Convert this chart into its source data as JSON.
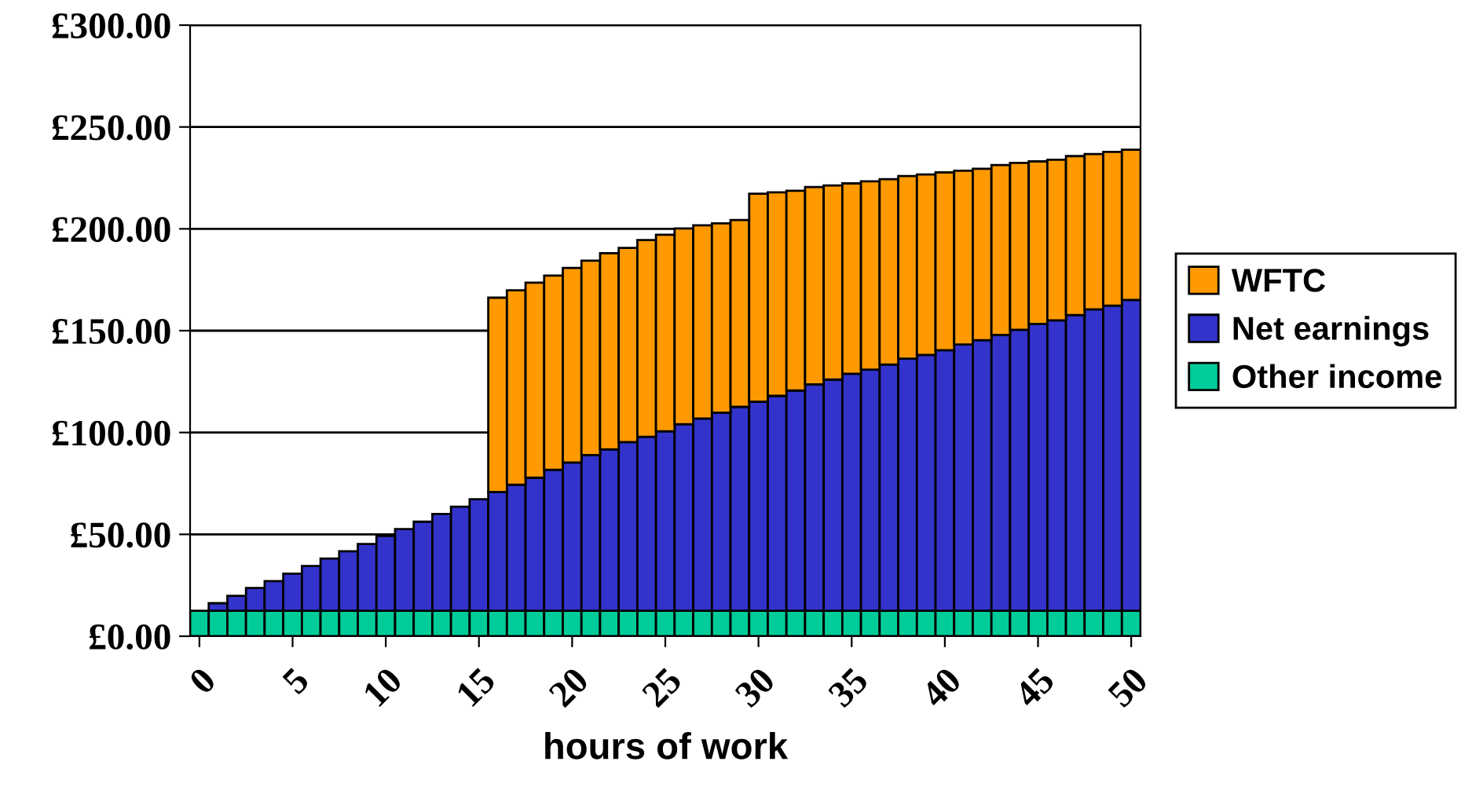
{
  "chart_data": {
    "type": "bar",
    "stacked": true,
    "xlabel": "hours of work",
    "categories": [
      "0",
      null,
      null,
      null,
      null,
      "5",
      null,
      null,
      null,
      null,
      "10",
      null,
      null,
      null,
      null,
      "15",
      null,
      null,
      null,
      null,
      "20",
      null,
      null,
      null,
      null,
      "25",
      null,
      null,
      null,
      null,
      "30",
      null,
      null,
      null,
      null,
      "35",
      null,
      null,
      null,
      null,
      "40",
      null,
      null,
      null,
      null,
      "45",
      null,
      null,
      null,
      null,
      "50"
    ],
    "series": [
      {
        "name": "Other income",
        "color": "#00cc99",
        "values": [
          12.5,
          12.5,
          12.5,
          12.5,
          12.5,
          12.5,
          12.5,
          12.5,
          12.5,
          12.5,
          12.5,
          12.5,
          12.5,
          12.5,
          12.5,
          12.5,
          12.5,
          12.5,
          12.5,
          12.5,
          12.5,
          12.5,
          12.5,
          12.5,
          12.5,
          12.5,
          12.5,
          12.5,
          12.5,
          12.5,
          12.5,
          12.5,
          12.5,
          12.5,
          12.5,
          12.5,
          12.5,
          12.5,
          12.5,
          12.5,
          12.5,
          12.5,
          12.5,
          12.5,
          12.5,
          12.5,
          12.5,
          12.5,
          12.5,
          12.5,
          12.5
        ]
      },
      {
        "name": "Net earnings",
        "color": "#3333cc",
        "values": [
          null,
          3.7,
          7.3,
          11.2,
          14.5,
          18.2,
          22.0,
          25.6,
          29.2,
          32.8,
          36.7,
          40.1,
          43.7,
          47.5,
          51.1,
          54.7,
          58.3,
          61.9,
          65.3,
          69.2,
          72.8,
          76.4,
          79.2,
          82.8,
          85.4,
          88.1,
          91.6,
          94.4,
          97.2,
          100.1,
          102.6,
          105.5,
          108.1,
          111.1,
          113.5,
          116.3,
          118.4,
          120.9,
          123.8,
          125.6,
          127.9,
          130.7,
          132.8,
          135.4,
          137.9,
          140.8,
          142.6,
          145.2,
          148.0,
          149.8,
          152.6
        ]
      },
      {
        "name": "WFTC",
        "color": "#ff9900",
        "values": [
          null,
          null,
          null,
          null,
          null,
          null,
          null,
          null,
          null,
          null,
          null,
          null,
          null,
          null,
          null,
          null,
          95.4,
          95.4,
          95.8,
          95.3,
          95.5,
          95.5,
          96.3,
          95.3,
          96.6,
          96.5,
          96.1,
          94.8,
          93.0,
          91.7,
          102.1,
          99.9,
          98.1,
          96.9,
          95.3,
          93.5,
          92.4,
          91.0,
          89.6,
          88.6,
          87.3,
          85.3,
          84.2,
          83.4,
          82.0,
          79.8,
          78.8,
          78.0,
          76.2,
          75.5,
          73.7
        ]
      }
    ],
    "ylim": [
      0,
      300
    ],
    "yticks": [
      {
        "value": 0,
        "label": "£0.00"
      },
      {
        "value": 50,
        "label": "£50.00"
      },
      {
        "value": 100,
        "label": "£100.00"
      },
      {
        "value": 150,
        "label": "£150.00"
      },
      {
        "value": 200,
        "label": "£200.00"
      },
      {
        "value": 250,
        "label": "£250.00"
      },
      {
        "value": 300,
        "label": "£300.00"
      }
    ],
    "grid": "y",
    "legend": "right"
  }
}
